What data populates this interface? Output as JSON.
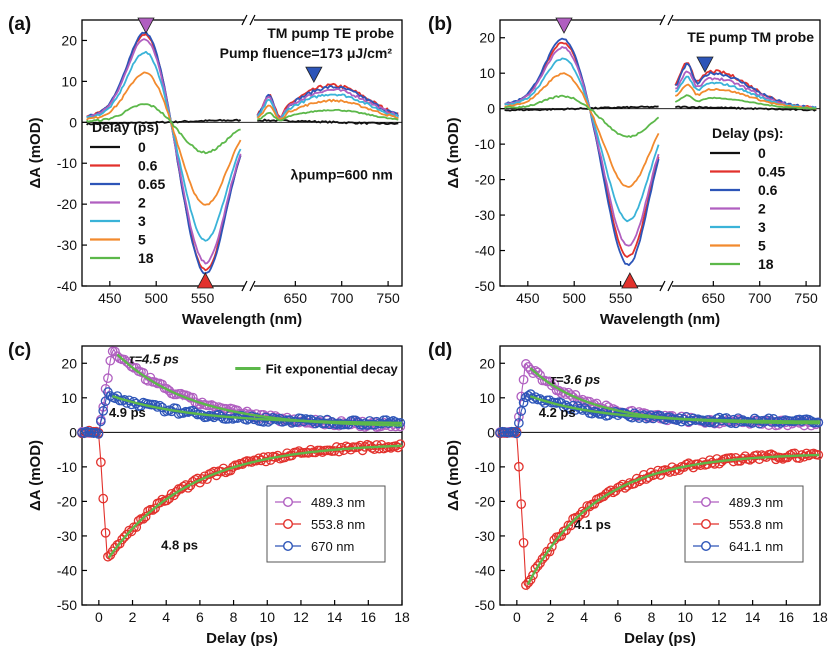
{
  "figure": {
    "background": "#ffffff"
  },
  "chart_data": [
    {
      "panel": "(a)",
      "type": "line",
      "xlabel": "Wavelength (nm)",
      "ylabel": "ΔA (mOD)",
      "xlim": [
        420,
        765
      ],
      "ylim": [
        -40,
        25
      ],
      "xticks": [
        450,
        500,
        550,
        650,
        700,
        750
      ],
      "yticks": [
        -40,
        -30,
        -20,
        -10,
        0,
        10,
        20
      ],
      "axis_break_at": 600,
      "annotations": [
        {
          "text": "TM pump TE probe"
        },
        {
          "text": "Pump fluence=173 μJ/cm²"
        },
        {
          "text": "λpump=600 nm"
        }
      ],
      "legend_title": "Delay (ps)",
      "legend_position": "left",
      "markers": [
        {
          "x": 489,
          "y": 25,
          "direction": "down",
          "color": "#b05fc0"
        },
        {
          "x": 553,
          "y": -40,
          "direction": "up",
          "color": "#e2312c"
        },
        {
          "x": 670,
          "y": 13,
          "direction": "down",
          "color": "#2d55b8"
        }
      ],
      "series": [
        {
          "name": "0",
          "color": "#111111",
          "scale_vis": 0.3,
          "scale_ir": 0.2,
          "flat": true
        },
        {
          "name": "0.6",
          "color": "#e2312c",
          "scale_vis": 0.98,
          "scale_ir": 1.05
        },
        {
          "name": "0.65",
          "color": "#2d55b8",
          "scale_vis": 1.0,
          "scale_ir": 1.0
        },
        {
          "name": "2",
          "color": "#b05fc0",
          "scale_vis": 0.93,
          "scale_ir": 0.92
        },
        {
          "name": "3",
          "color": "#3ab3d8",
          "scale_vis": 0.78,
          "scale_ir": 0.8
        },
        {
          "name": "5",
          "color": "#f28a2e",
          "scale_vis": 0.55,
          "scale_ir": 0.62
        },
        {
          "name": "18",
          "color": "#5cb84a",
          "scale_vis": 0.2,
          "scale_ir": 0.35
        }
      ],
      "base": {
        "pos_peak": 22,
        "pos_center": 489,
        "neg_peak": -37,
        "neg_center": 553,
        "ir_peak": 8.6,
        "ir_center": 690
      }
    },
    {
      "panel": "(b)",
      "type": "line",
      "xlabel": "Wavelength (nm)",
      "ylabel": "ΔA (mOD)",
      "xlim": [
        420,
        765
      ],
      "ylim": [
        -50,
        25
      ],
      "xticks": [
        450,
        500,
        550,
        650,
        700,
        750
      ],
      "yticks": [
        -50,
        -40,
        -30,
        -20,
        -10,
        0,
        10,
        20
      ],
      "axis_break_at": 600,
      "annotations": [
        {
          "text": "TE pump TM probe"
        }
      ],
      "legend_title": "Delay (ps):",
      "legend_position": "right",
      "markers": [
        {
          "x": 489,
          "y": 25,
          "direction": "down",
          "color": "#b05fc0"
        },
        {
          "x": 560,
          "y": -50,
          "direction": "up",
          "color": "#e2312c"
        },
        {
          "x": 641,
          "y": 14,
          "direction": "down",
          "color": "#2d55b8"
        }
      ],
      "series": [
        {
          "name": "0",
          "color": "#111111",
          "scale_vis": 0.3,
          "scale_ir": 0.2,
          "flat": true
        },
        {
          "name": "0.45",
          "color": "#e2312c",
          "scale_vis": 0.95,
          "scale_ir": 1.05
        },
        {
          "name": "0.6",
          "color": "#2d55b8",
          "scale_vis": 1.0,
          "scale_ir": 1.0
        },
        {
          "name": "2",
          "color": "#b05fc0",
          "scale_vis": 0.88,
          "scale_ir": 0.85
        },
        {
          "name": "3",
          "color": "#3ab3d8",
          "scale_vis": 0.72,
          "scale_ir": 0.72
        },
        {
          "name": "5",
          "color": "#f28a2e",
          "scale_vis": 0.5,
          "scale_ir": 0.55
        },
        {
          "name": "18",
          "color": "#5cb84a",
          "scale_vis": 0.18,
          "scale_ir": 0.3
        }
      ],
      "base": {
        "pos_peak": 19.5,
        "pos_center": 489,
        "neg_peak": -44,
        "neg_center": 558,
        "ir_peak": 10,
        "ir_center": 650
      }
    },
    {
      "panel": "(c)",
      "type": "scatter",
      "xlabel": "Delay (ps)",
      "ylabel": "ΔA (mOD)",
      "xlim": [
        -1,
        18
      ],
      "ylim": [
        -50,
        25
      ],
      "xticks": [
        0,
        2,
        4,
        6,
        8,
        10,
        12,
        14,
        16,
        18
      ],
      "yticks": [
        -50,
        -40,
        -30,
        -20,
        -10,
        0,
        10,
        20
      ],
      "fit_legend": "Fit exponential decay",
      "fit_color": "#5cb84a",
      "annotations": [
        {
          "text": "τ=4.5 ps",
          "x": 1.8,
          "y": 20
        },
        {
          "text": "4.9 ps",
          "x": 0.6,
          "y": 4.5
        },
        {
          "text": "4.8 ps",
          "x": 3.7,
          "y": -34
        }
      ],
      "series": [
        {
          "name": "489.3 nm",
          "color": "#b05fc0",
          "amp": 24,
          "tau": 4.5,
          "offset": 1.5,
          "peak_t": 0.8
        },
        {
          "name": "553.8 nm",
          "color": "#e2312c",
          "amp": -37,
          "tau": 4.8,
          "offset": -3,
          "peak_t": 0.5
        },
        {
          "name": "670 nm",
          "color": "#2d55b8",
          "amp": 11,
          "tau": 4.9,
          "offset": 2.5,
          "peak_t": 0.5
        }
      ]
    },
    {
      "panel": "(d)",
      "type": "scatter",
      "xlabel": "Delay (ps)",
      "ylabel": "ΔA (mOD)",
      "xlim": [
        -1,
        18
      ],
      "ylim": [
        -50,
        25
      ],
      "xticks": [
        0,
        2,
        4,
        6,
        8,
        10,
        12,
        14,
        16,
        18
      ],
      "yticks": [
        -50,
        -40,
        -30,
        -20,
        -10,
        0,
        10,
        20
      ],
      "annotations": [
        {
          "text": "τ=3.6 ps",
          "x": 2.0,
          "y": 14
        },
        {
          "text": "4.2 ps",
          "x": 1.3,
          "y": 4.5
        },
        {
          "text": "4.1 ps",
          "x": 3.4,
          "y": -28
        }
      ],
      "series": [
        {
          "name": "489.3 nm",
          "color": "#b05fc0",
          "amp": 20,
          "tau": 3.6,
          "offset": 2.5,
          "peak_t": 0.5
        },
        {
          "name": "553.8 nm",
          "color": "#e2312c",
          "amp": -45,
          "tau": 4.1,
          "offset": -6,
          "peak_t": 0.55
        },
        {
          "name": "641.1 nm",
          "color": "#2d55b8",
          "amp": 11,
          "tau": 4.2,
          "offset": 3,
          "peak_t": 0.5
        }
      ]
    }
  ]
}
